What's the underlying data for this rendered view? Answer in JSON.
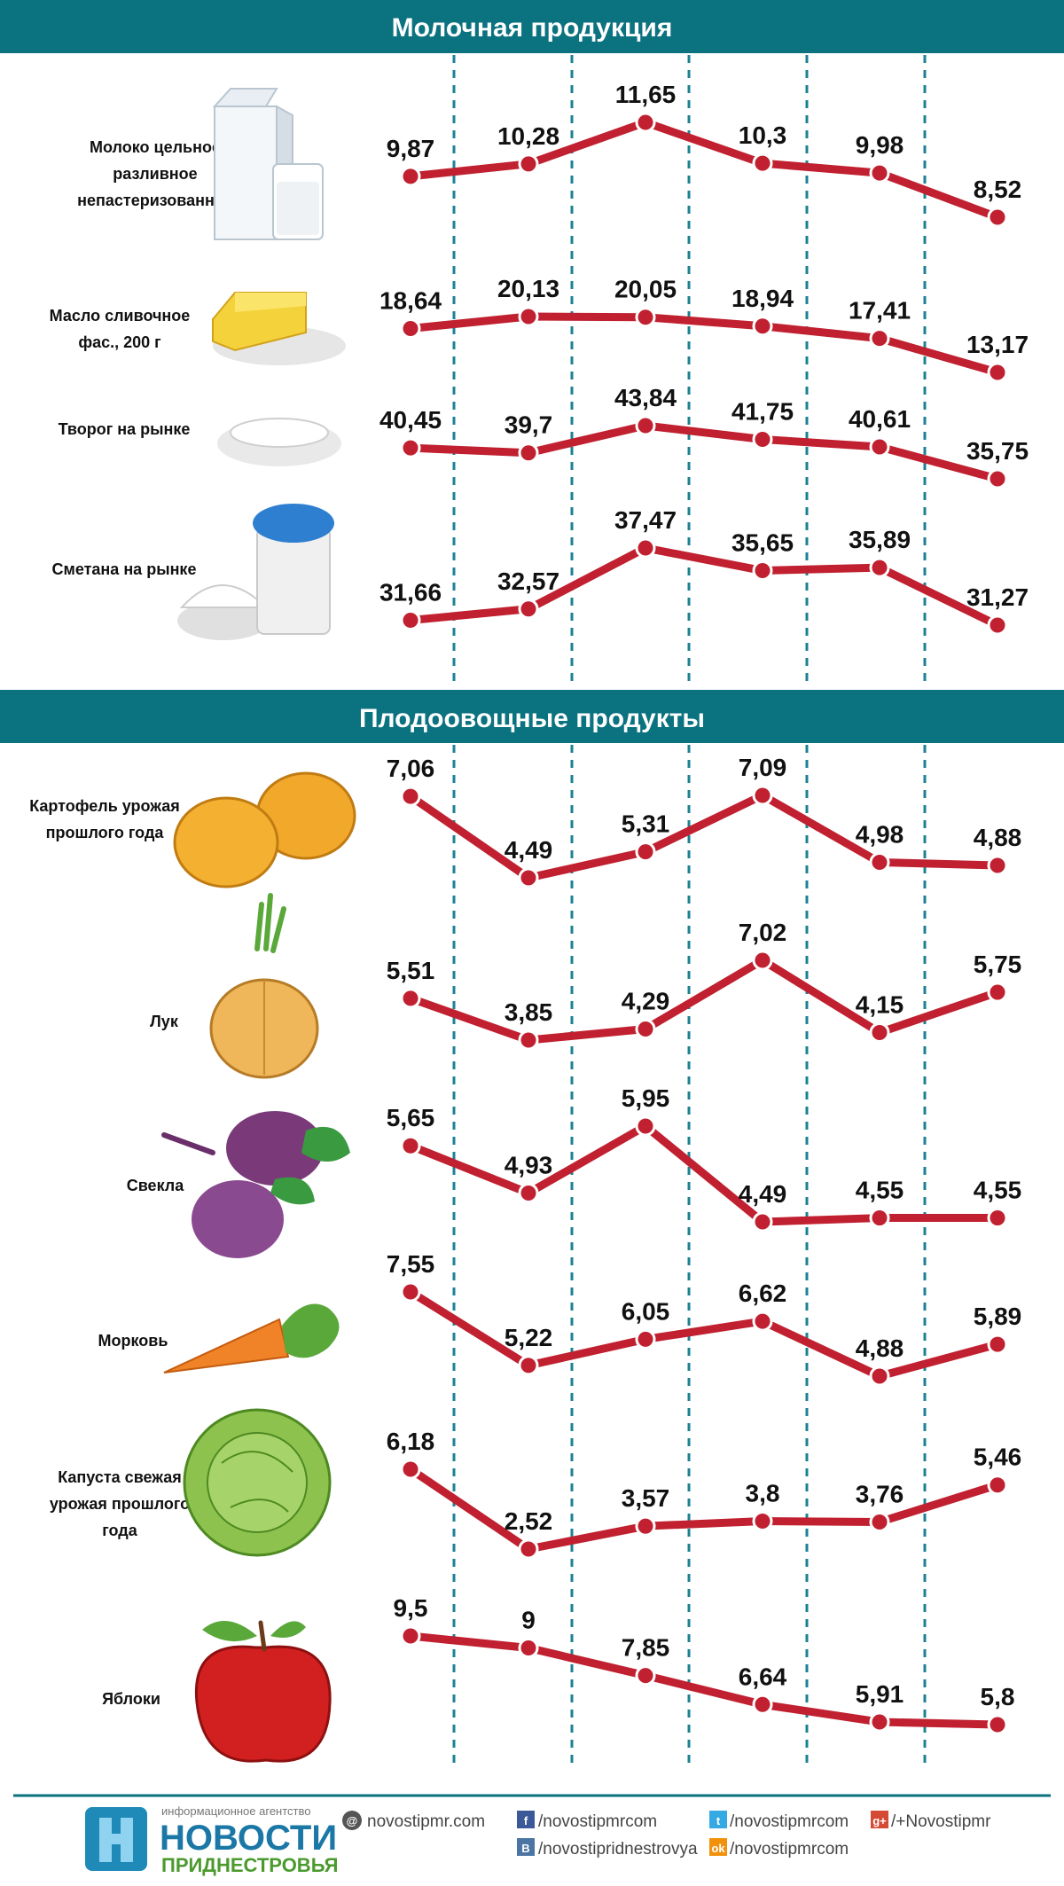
{
  "sections": [
    {
      "title": "Молочная продукция"
    },
    {
      "title": "Плодоовощные продукты"
    }
  ],
  "colors": {
    "header_bg": "#0b7280",
    "line": "#c0202f",
    "grid": "#1b8294",
    "footer_line": "#0b7280"
  },
  "chart_data": [
    {
      "type": "line",
      "title": "Молочная продукция",
      "series": [
        {
          "name": "Молоко цельное разливное непастеризованное",
          "icon": "milk-carton-icon",
          "values": [
            9.87,
            10.28,
            11.65,
            10.3,
            9.98,
            8.52
          ],
          "labels": [
            "9,87",
            "10,28",
            "11,65",
            "10,3",
            "9,98",
            "8,52"
          ]
        },
        {
          "name": "Масло сливочное фас., 200 г",
          "icon": "butter-icon",
          "values": [
            18.64,
            20.13,
            20.05,
            18.94,
            17.41,
            13.17
          ],
          "labels": [
            "18,64",
            "20,13",
            "20,05",
            "18,94",
            "17,41",
            "13,17"
          ]
        },
        {
          "name": "Творог на рынке",
          "icon": "cottage-cheese-icon",
          "values": [
            40.45,
            39.7,
            43.84,
            41.75,
            40.61,
            35.75
          ],
          "labels": [
            "40,45",
            "39,7",
            "43,84",
            "41,75",
            "40,61",
            "35,75"
          ]
        },
        {
          "name": "Сметана на рынке",
          "icon": "sour-cream-icon",
          "values": [
            31.66,
            32.57,
            37.47,
            35.65,
            35.89,
            31.27
          ],
          "labels": [
            "31,66",
            "32,57",
            "37,47",
            "35,65",
            "35,89",
            "31,27"
          ]
        }
      ]
    },
    {
      "type": "line",
      "title": "Плодоовощные продукты",
      "series": [
        {
          "name": "Картофель урожая прошлого года",
          "icon": "potato-icon",
          "values": [
            7.06,
            4.49,
            5.31,
            7.09,
            4.98,
            4.88
          ],
          "labels": [
            "7,06",
            "4,49",
            "5,31",
            "7,09",
            "4,98",
            "4,88"
          ]
        },
        {
          "name": "Лук",
          "icon": "onion-icon",
          "values": [
            5.51,
            3.85,
            4.29,
            7.02,
            4.15,
            5.75
          ],
          "labels": [
            "5,51",
            "3,85",
            "4,29",
            "7,02",
            "4,15",
            "5,75"
          ]
        },
        {
          "name": "Свекла",
          "icon": "beet-icon",
          "values": [
            5.65,
            4.93,
            5.95,
            4.49,
            4.55,
            4.55
          ],
          "labels": [
            "5,65",
            "4,93",
            "5,95",
            "4,49",
            "4,55",
            "4,55"
          ]
        },
        {
          "name": "Морковь",
          "icon": "carrot-icon",
          "values": [
            7.55,
            5.22,
            6.05,
            6.62,
            4.88,
            5.89
          ],
          "labels": [
            "7,55",
            "5,22",
            "6,05",
            "6,62",
            "4,88",
            "5,89"
          ]
        },
        {
          "name": "Капуста свежая урожая прошлого года",
          "icon": "cabbage-icon",
          "values": [
            6.18,
            2.52,
            3.57,
            3.8,
            3.76,
            5.46
          ],
          "labels": [
            "6,18",
            "2,52",
            "3,57",
            "3,8",
            "3,76",
            "5,46"
          ]
        },
        {
          "name": "Яблоки",
          "icon": "apple-icon",
          "values": [
            9.5,
            9,
            7.85,
            6.64,
            5.91,
            5.8
          ],
          "labels": [
            "9,5",
            "9",
            "7,85",
            "6,64",
            "5,91",
            "5,8"
          ]
        }
      ]
    }
  ],
  "footer": {
    "agency_small": "информационное агентство",
    "brand": "НОВОСТИ",
    "brand_sub": "ПРИДНЕСТРОВЬЯ",
    "links": [
      {
        "icon": "web-icon",
        "text": "novostipmr.com"
      },
      {
        "icon": "facebook-icon",
        "text": "/novostipmrcom"
      },
      {
        "icon": "twitter-icon",
        "text": "/novostipmrcom"
      },
      {
        "icon": "googleplus-icon",
        "text": "/+Novostipmr"
      },
      {
        "icon": "vkontakte-icon",
        "text": "/novostipridnestrovya"
      },
      {
        "icon": "odnoklassniki-icon",
        "text": "/novostipmrcom"
      }
    ]
  }
}
